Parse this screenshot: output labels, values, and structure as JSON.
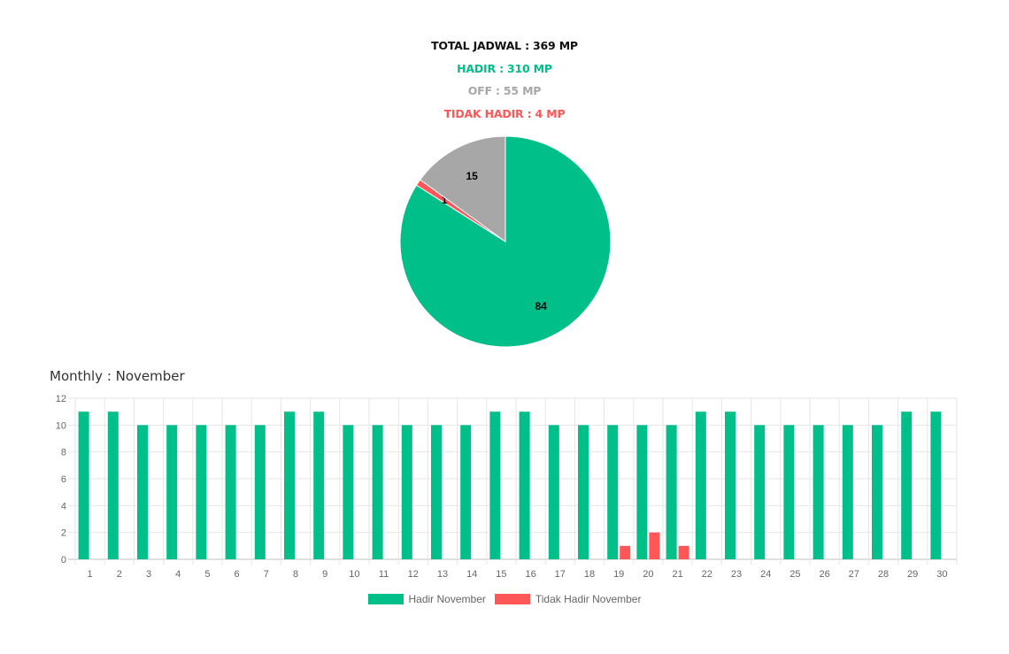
{
  "summary": {
    "total": "TOTAL JADWAL : 369 MP",
    "hadir": "HADIR : 310 MP",
    "off": "OFF : 55 MP",
    "tidak_hadir": "TIDAK HADIR : 4 MP"
  },
  "colors": {
    "total": "#111111",
    "hadir": "#00bf89",
    "off": "#a7a7a7",
    "tidak_hadir": "#ff5757"
  },
  "monthly_title": "Monthly : November",
  "chart_data": [
    {
      "type": "pie",
      "slices": [
        {
          "label": "Hadir",
          "value": 84,
          "color": "#00bf89"
        },
        {
          "label": "Tidak Hadir",
          "value": 1,
          "color": "#ff5757"
        },
        {
          "label": "Off",
          "value": 15,
          "color": "#a7a7a7"
        }
      ],
      "data_labels": [
        "84",
        "1",
        "15"
      ]
    },
    {
      "type": "bar",
      "title": "Monthly : November",
      "categories": [
        "1",
        "2",
        "3",
        "4",
        "5",
        "6",
        "7",
        "8",
        "9",
        "10",
        "11",
        "12",
        "13",
        "14",
        "15",
        "16",
        "17",
        "18",
        "19",
        "20",
        "21",
        "22",
        "23",
        "24",
        "25",
        "26",
        "27",
        "28",
        "29",
        "30"
      ],
      "series": [
        {
          "name": "Hadir November",
          "color": "#00bf89",
          "values": [
            11,
            11,
            10,
            10,
            10,
            10,
            10,
            11,
            11,
            10,
            10,
            10,
            10,
            10,
            11,
            11,
            10,
            10,
            10,
            10,
            10,
            11,
            11,
            10,
            10,
            10,
            10,
            10,
            11,
            11
          ]
        },
        {
          "name": "Tidak Hadir November",
          "color": "#ff5757",
          "values": [
            0,
            0,
            0,
            0,
            0,
            0,
            0,
            0,
            0,
            0,
            0,
            0,
            0,
            0,
            0,
            0,
            0,
            0,
            1,
            2,
            1,
            0,
            0,
            0,
            0,
            0,
            0,
            0,
            0,
            0
          ]
        }
      ],
      "ylim": [
        0,
        12
      ],
      "yticks": [
        0,
        2,
        4,
        6,
        8,
        10,
        12
      ],
      "grid": true,
      "legend": "bottom"
    }
  ]
}
